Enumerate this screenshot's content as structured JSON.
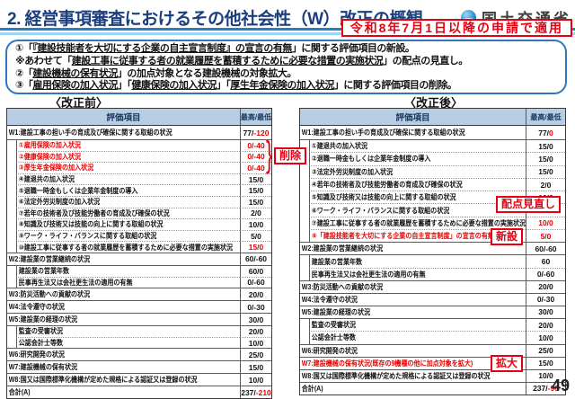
{
  "header": {
    "title": "2. 経営事項審査におけるその他社会性（W）改正の概観",
    "ministry": "国土交通省",
    "apply_note": "令和8年7月1日以降の申請で適用"
  },
  "summary": {
    "lines": [
      [
        {
          "t": "①「",
          "u": false
        },
        {
          "t": "『建設技能者を大切にする企業の自主宣言制度』の宣言の有無",
          "u": true
        },
        {
          "t": "」に関する評価項目の新設。",
          "u": false
        }
      ],
      [
        {
          "t": "※あわせて「",
          "u": false
        },
        {
          "t": "建設工事に従事する者の就業履歴を蓄積するために必要な措置の実施状況",
          "u": true
        },
        {
          "t": "」の配点の見直し。",
          "u": false
        }
      ],
      [
        {
          "t": "②「",
          "u": false
        },
        {
          "t": "建設機械の保有状況",
          "u": true
        },
        {
          "t": "」の加点対象となる建設機械の対象拡大。",
          "u": false
        }
      ],
      [
        {
          "t": "③「",
          "u": false
        },
        {
          "t": "雇用保険の加入状況",
          "u": true
        },
        {
          "t": "」「",
          "u": false
        },
        {
          "t": "健康保険の加入状況",
          "u": true
        },
        {
          "t": "」「",
          "u": false
        },
        {
          "t": "厚生年金保険の加入状況",
          "u": true
        },
        {
          "t": "」に関する評価項目の削除。",
          "u": false
        }
      ]
    ]
  },
  "tables": {
    "before": {
      "caption": "〈改正前〉",
      "col_item": "評価項目",
      "col_score": "最高/最低",
      "rows": [
        {
          "t": "cat",
          "label": "W1:建設工事の担い手の育成及び確保に関する取組の状況",
          "v": "77/",
          "r": "-120"
        },
        {
          "t": "sub",
          "red": true,
          "label": "①雇用保険の加入状況",
          "v": "",
          "r": "0/-40"
        },
        {
          "t": "sub",
          "red": true,
          "label": "②健康保険の加入状況",
          "v": "",
          "r": "0/-40"
        },
        {
          "t": "sub",
          "red": true,
          "label": "③厚生年金保険の加入状況",
          "v": "",
          "r": "0/-40"
        },
        {
          "t": "sub",
          "label": "④建退共の加入状況",
          "v": "15/0",
          "r": ""
        },
        {
          "t": "sub",
          "label": "⑤退職一時金もしくは企業年金制度の導入",
          "v": "15/0",
          "r": ""
        },
        {
          "t": "sub",
          "label": "⑥法定外労災制度の加入状況",
          "v": "15/0",
          "r": ""
        },
        {
          "t": "sub",
          "label": "⑦若年の技術者及び技能労働者の育成及び確保の状況",
          "v": "2/0",
          "r": ""
        },
        {
          "t": "sub",
          "label": "⑧知識及び技術又は技能の向上に関する取組の状況",
          "v": "10/0",
          "r": ""
        },
        {
          "t": "sub",
          "label": "⑨ワーク・ライフ・バランスに関する取組の状況",
          "v": "5/0",
          "r": ""
        },
        {
          "t": "sub",
          "label": "⑩建設工事に従事する者の就業履歴を蓄積するために必要な措置の実施状況",
          "v": "",
          "r": "15/0"
        },
        {
          "t": "cat",
          "label": "W2:建設業の営業継続の状況",
          "v": "60/-60",
          "r": ""
        },
        {
          "t": "sub",
          "label": "建設業の営業年数",
          "v": "60/0",
          "r": ""
        },
        {
          "t": "sub",
          "label": "民事再生法又は会社更生法の適用の有無",
          "v": "0/-60",
          "r": ""
        },
        {
          "t": "cat",
          "label": "W3:防災活動への貢献の状況",
          "v": "20/0",
          "r": ""
        },
        {
          "t": "cat",
          "label": "W4:法令遵守の状況",
          "v": "0/-30",
          "r": ""
        },
        {
          "t": "cat",
          "label": "W5:建設業の経理の状況",
          "v": "30/0",
          "r": ""
        },
        {
          "t": "sub",
          "label": "監査の受審状況",
          "v": "20/0",
          "r": ""
        },
        {
          "t": "sub",
          "label": "公認会計士等数",
          "v": "10/0",
          "r": ""
        },
        {
          "t": "cat",
          "label": "W6:研究開発の状況",
          "v": "25/0",
          "r": ""
        },
        {
          "t": "cat",
          "label": "W7:建設機械の保有状況",
          "v": "15/0",
          "r": ""
        },
        {
          "t": "cat",
          "label": "W8:国又は国際標準化機構が定めた規格による認証又は登録の状況",
          "v": "10/0",
          "r": ""
        },
        {
          "t": "total",
          "label": "合計(A)",
          "v": "237/",
          "r": "-210"
        }
      ]
    },
    "after": {
      "caption": "〈改正後〉",
      "col_item": "評価項目",
      "col_score": "最高/最低",
      "rows": [
        {
          "t": "cat",
          "label": "W1:建設工事の担い手の育成及び確保に関する取組の状況",
          "v": "77/",
          "r": "0"
        },
        {
          "t": "sub",
          "label": "①建退共の加入状況",
          "v": "15/0",
          "r": ""
        },
        {
          "t": "sub",
          "label": "②退職一時金もしくは企業年金制度の導入",
          "v": "15/0",
          "r": ""
        },
        {
          "t": "sub",
          "label": "③法定外労災制度の加入状況",
          "v": "15/0",
          "r": ""
        },
        {
          "t": "sub",
          "label": "④若年の技術者及び技能労働者の育成及び確保の状況",
          "v": "2/0",
          "r": ""
        },
        {
          "t": "sub",
          "label": "⑤知識及び技術又は技能の向上に関する取組の状況",
          "v": "10/0",
          "r": ""
        },
        {
          "t": "sub",
          "label": "⑥ワーク・ライフ・バランスに関する取組の状況",
          "v": "5/0",
          "r": ""
        },
        {
          "t": "sub",
          "label": "⑦建設工事に従事する者の就業履歴を蓄積するために必要な措置の実施状況",
          "v": "",
          "r": "10/0"
        },
        {
          "t": "sub",
          "red": true,
          "label": "⑧「建設技能者を大切にする企業の自主宣言制度」の宣言の有無",
          "v": "",
          "r": "5/0"
        },
        {
          "t": "cat",
          "label": "W2:建設業の営業継続の状況",
          "v": "60/-60",
          "r": ""
        },
        {
          "t": "sub",
          "label": "建設業の営業年数",
          "v": "60",
          "r": ""
        },
        {
          "t": "sub",
          "label": "民事再生法又は会社更生法の適用の有無",
          "v": "0/-60",
          "r": ""
        },
        {
          "t": "cat",
          "label": "W3:防災活動への貢献の状況",
          "v": "20/0",
          "r": ""
        },
        {
          "t": "cat",
          "label": "W4:法令遵守の状況",
          "v": "0/-30",
          "r": ""
        },
        {
          "t": "cat",
          "label": "W5:建設業の経理の状況",
          "v": "30/0",
          "r": ""
        },
        {
          "t": "sub",
          "label": "監査の受審状況",
          "v": "20/0",
          "r": ""
        },
        {
          "t": "sub",
          "label": "公認会計士等数",
          "v": "10/0",
          "r": ""
        },
        {
          "t": "cat",
          "label": "W6:研究開発の状況",
          "v": "25/0",
          "r": ""
        },
        {
          "t": "cat",
          "red": true,
          "label": "W7:建設機械の保有状況(既存の9機種の他に加点対象を拡大)",
          "v": "15/0",
          "r": ""
        },
        {
          "t": "cat",
          "label": "W8:国又は国際標準化機構が定めた規格による認証又は登録の状況",
          "v": "10/0",
          "r": ""
        },
        {
          "t": "total",
          "label": "合計(A)",
          "v": "237/",
          "r": "-90"
        }
      ]
    }
  },
  "annotations": {
    "delete": "削除",
    "review": "配点見直し",
    "new_label": "新設",
    "expand": "拡大"
  },
  "page_number": "49",
  "colors": {
    "accent_red": "#e60012",
    "title_blue": "#1b3f7d",
    "table_header_bg": "#b8cce4",
    "table_header_text": "#17375e",
    "rule_blue": "#2c7cc0",
    "rule_light_blue": "#9fd4ef"
  }
}
